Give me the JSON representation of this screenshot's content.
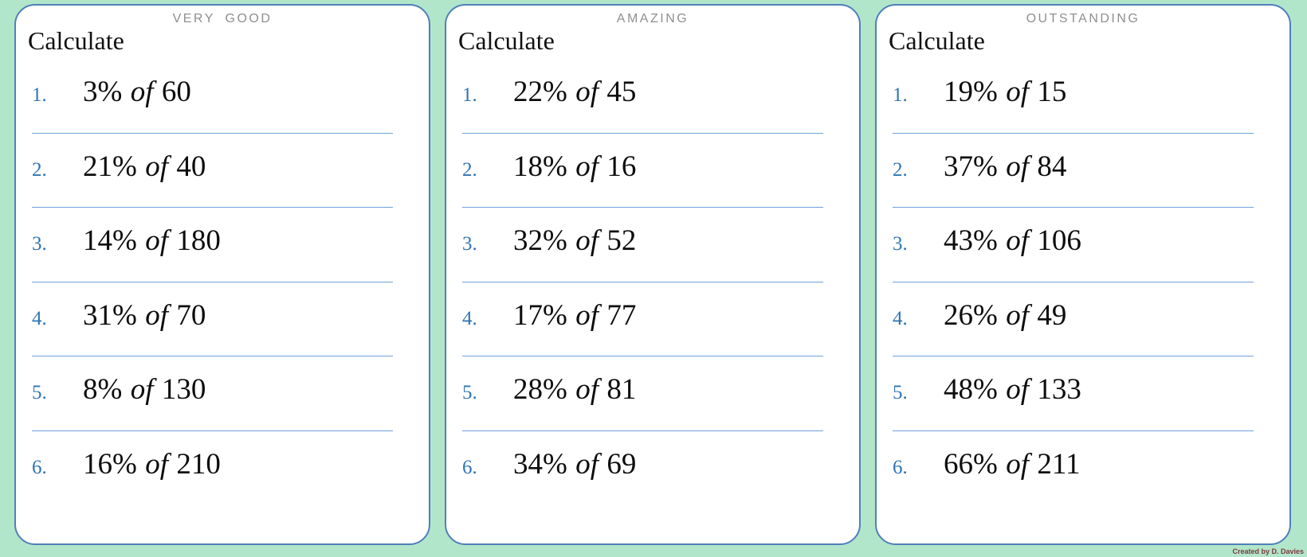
{
  "page": {
    "background_color": "#b2e6cb",
    "card_border_color": "#4f7fba",
    "separator_color": "#6f9fd8",
    "number_color": "#2e75b6",
    "badge_color": "#8f8f8f",
    "credit": "Created by D. Davies"
  },
  "cards": [
    {
      "badge": "VERY GOOD",
      "title": "Calculate",
      "problems": [
        {
          "number": "1.",
          "percent": "3%",
          "connector": "of",
          "operand": "60"
        },
        {
          "number": "2.",
          "percent": "21%",
          "connector": "of",
          "operand": "40"
        },
        {
          "number": "3.",
          "percent": "14%",
          "connector": "of",
          "operand": "180"
        },
        {
          "number": "4.",
          "percent": "31%",
          "connector": "of",
          "operand": "70"
        },
        {
          "number": "5.",
          "percent": "8%",
          "connector": "of",
          "operand": "130"
        },
        {
          "number": "6.",
          "percent": "16%",
          "connector": "of",
          "operand": "210"
        }
      ]
    },
    {
      "badge": "AMAZING",
      "title": "Calculate",
      "problems": [
        {
          "number": "1.",
          "percent": "22%",
          "connector": "of",
          "operand": "45"
        },
        {
          "number": "2.",
          "percent": "18%",
          "connector": "of",
          "operand": "16"
        },
        {
          "number": "3.",
          "percent": "32%",
          "connector": "of",
          "operand": "52"
        },
        {
          "number": "4.",
          "percent": "17%",
          "connector": "of",
          "operand": "77"
        },
        {
          "number": "5.",
          "percent": "28%",
          "connector": "of",
          "operand": "81"
        },
        {
          "number": "6.",
          "percent": "34%",
          "connector": "of",
          "operand": "69"
        }
      ]
    },
    {
      "badge": "OUTSTANDING",
      "title": "Calculate",
      "problems": [
        {
          "number": "1.",
          "percent": "19%",
          "connector": "of",
          "operand": "15"
        },
        {
          "number": "2.",
          "percent": "37%",
          "connector": "of",
          "operand": "84"
        },
        {
          "number": "3.",
          "percent": "43%",
          "connector": "of",
          "operand": "106"
        },
        {
          "number": "4.",
          "percent": "26%",
          "connector": "of",
          "operand": "49"
        },
        {
          "number": "5.",
          "percent": "48%",
          "connector": "of",
          "operand": "133"
        },
        {
          "number": "6.",
          "percent": "66%",
          "connector": "of",
          "operand": "211"
        }
      ]
    }
  ]
}
